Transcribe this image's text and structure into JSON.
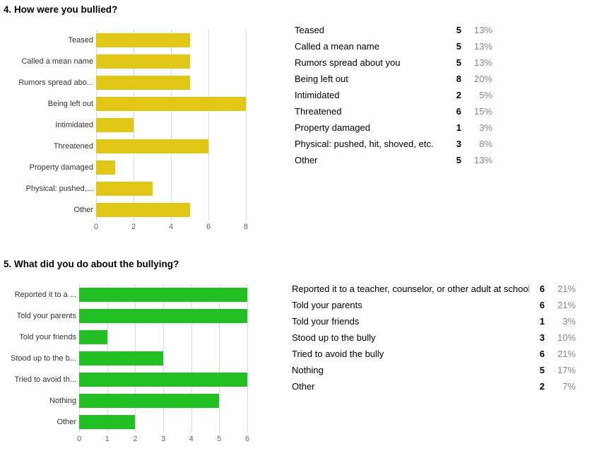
{
  "chart_data": [
    {
      "type": "bar",
      "orientation": "horizontal",
      "title": "4. How were you bullied?",
      "color": "#e0c716",
      "categories": [
        "Teased",
        "Called a mean name",
        "Rumors spread abo...",
        "Being left out",
        "Intimidated",
        "Threatened",
        "Property damaged",
        "Physical: pushed,...",
        "Other"
      ],
      "values": [
        5,
        5,
        5,
        8,
        2,
        6,
        1,
        3,
        5
      ],
      "xlim": [
        0,
        8
      ],
      "xticks": [
        0,
        2,
        4,
        6,
        8
      ],
      "grid": true,
      "legend": "none"
    },
    {
      "type": "bar",
      "orientation": "horizontal",
      "title": "5. What did you do about the bullying?",
      "color": "#22c022",
      "categories": [
        "Reported it to a ...",
        "Told your parents",
        "Told your friends",
        "Stood up to the b...",
        "Tried to avoid th...",
        "Nothing",
        "Other"
      ],
      "values": [
        6,
        6,
        1,
        3,
        6,
        5,
        2
      ],
      "xlim": [
        0,
        6
      ],
      "xticks": [
        0,
        1,
        2,
        3,
        4,
        5,
        6
      ],
      "grid": true,
      "legend": "none"
    }
  ],
  "tables": [
    {
      "rows": [
        {
          "label": "Teased",
          "count": "5",
          "percent": "13%"
        },
        {
          "label": "Called a mean name",
          "count": "5",
          "percent": "13%"
        },
        {
          "label": "Rumors spread about you",
          "count": "5",
          "percent": "13%"
        },
        {
          "label": "Being left out",
          "count": "8",
          "percent": "20%"
        },
        {
          "label": "Intimidated",
          "count": "2",
          "percent": "5%"
        },
        {
          "label": "Threatened",
          "count": "6",
          "percent": "15%"
        },
        {
          "label": "Property damaged",
          "count": "1",
          "percent": "3%"
        },
        {
          "label": "Physical: pushed, hit, shoved, etc.",
          "count": "3",
          "percent": "8%"
        },
        {
          "label": "Other",
          "count": "5",
          "percent": "13%"
        }
      ]
    },
    {
      "rows": [
        {
          "label": "Reported it to a teacher, counselor, or other adult at school",
          "count": "6",
          "percent": "21%"
        },
        {
          "label": "Told your parents",
          "count": "6",
          "percent": "21%"
        },
        {
          "label": "Told your friends",
          "count": "1",
          "percent": "3%"
        },
        {
          "label": "Stood up to the bully",
          "count": "3",
          "percent": "10%"
        },
        {
          "label": "Tried to avoid the bully",
          "count": "6",
          "percent": "21%"
        },
        {
          "label": "Nothing",
          "count": "5",
          "percent": "17%"
        },
        {
          "label": "Other",
          "count": "2",
          "percent": "7%"
        }
      ]
    }
  ]
}
